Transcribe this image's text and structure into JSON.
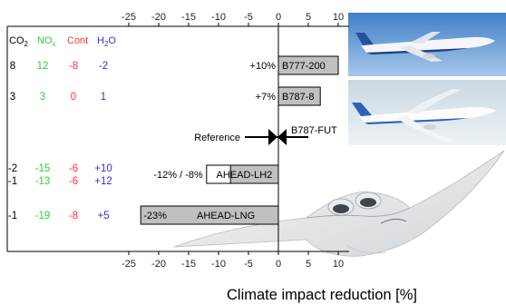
{
  "chart_data": {
    "type": "bar",
    "orientation": "horizontal",
    "xlabel": "Climate impact reduction [%]",
    "xlim": [
      -25,
      10
    ],
    "xticks": [
      -25,
      -20,
      -15,
      -10,
      -5,
      0,
      5,
      10
    ],
    "column_headers": [
      {
        "key": "co2",
        "base": "CO",
        "sub": "2",
        "color": "#000000"
      },
      {
        "key": "nox",
        "base": "NO",
        "sub": "x",
        "color": "#33cc33"
      },
      {
        "key": "cont",
        "base": "Cont",
        "sub": "",
        "color": "#ff3333"
      },
      {
        "key": "h2o",
        "base": "H",
        "sub": "2",
        "tail": "O",
        "color": "#3333cc"
      }
    ],
    "rows": [
      {
        "aircraft": "B777-200",
        "annotation": "+10%",
        "values": [
          {
            "from": 0,
            "to": 10
          }
        ],
        "table": {
          "co2": [
            "8"
          ],
          "nox": [
            "12"
          ],
          "cont": [
            "-8"
          ],
          "h2o": [
            "-2"
          ]
        }
      },
      {
        "aircraft": "B787-8",
        "annotation": "+7%",
        "values": [
          {
            "from": 0,
            "to": 7
          }
        ],
        "table": {
          "co2": [
            "3"
          ],
          "nox": [
            "3"
          ],
          "cont": [
            "0"
          ],
          "h2o": [
            "1"
          ]
        }
      },
      {
        "aircraft": "B787-FUT",
        "annotation": "Reference",
        "values": [],
        "table": {
          "co2": [],
          "nox": [],
          "cont": [],
          "h2o": []
        }
      },
      {
        "aircraft": "AHEAD-LH2",
        "annotation": "-12% / -8%",
        "values": [
          {
            "from": -12,
            "to": 0
          },
          {
            "from": -8,
            "to": 0
          }
        ],
        "table": {
          "co2": [
            "-2",
            "-1"
          ],
          "nox": [
            "-15",
            "-13"
          ],
          "cont": [
            "-6",
            "-6"
          ],
          "h2o": [
            "+10",
            "+12"
          ]
        }
      },
      {
        "aircraft": "AHEAD-LNG",
        "annotation": "-23%",
        "values": [
          {
            "from": -23,
            "to": 0
          }
        ],
        "table": {
          "co2": [
            "-1"
          ],
          "nox": [
            "-19"
          ],
          "cont": [
            "-8"
          ],
          "h2o": [
            "+5"
          ]
        }
      }
    ],
    "colors": {
      "bar_fill": "#c0c0c0",
      "axis": "#000000"
    },
    "grid": false,
    "legend": "none"
  }
}
